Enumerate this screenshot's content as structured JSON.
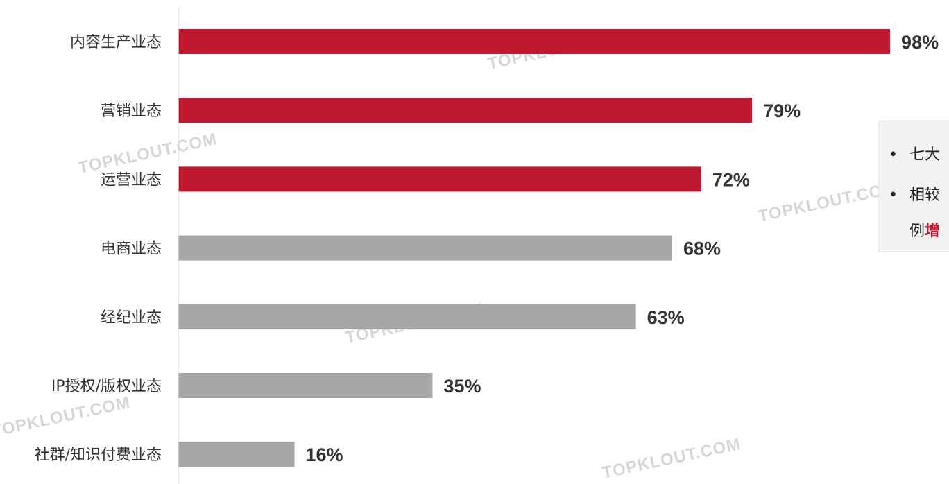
{
  "chart_data": {
    "type": "bar",
    "orientation": "horizontal",
    "categories": [
      "内容生产业态",
      "营销业态",
      "运营业态",
      "电商业态",
      "经纪业态",
      "IP授权/版权业态",
      "社群/知识付费业态"
    ],
    "values": [
      98,
      79,
      72,
      68,
      63,
      35,
      16
    ],
    "value_labels": [
      "98%",
      "79%",
      "72%",
      "68%",
      "63%",
      "35%",
      "16%"
    ],
    "highlighted": [
      true,
      true,
      true,
      false,
      false,
      false,
      false
    ],
    "xlim": [
      0,
      100
    ],
    "grid": false,
    "colors": {
      "highlight": "#c0182f",
      "normal": "#a6a6a6",
      "axis": "#d9d9d9"
    }
  },
  "note": {
    "line1_text": "七大",
    "line2_text": "相较",
    "line3_prefix": "例",
    "line3_highlight": "增"
  },
  "watermark_text": "TOPKLOUT.COM"
}
